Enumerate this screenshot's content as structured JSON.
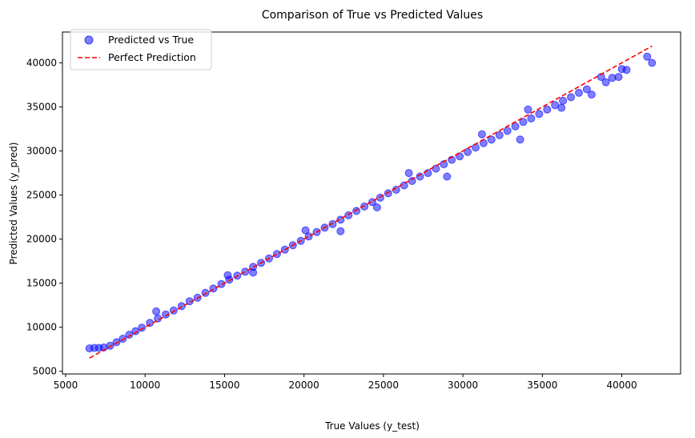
{
  "chart_data": {
    "type": "scatter",
    "title": "Comparison of True vs Predicted Values",
    "xlabel": "True Values (y_test)",
    "ylabel": "Predicted Values (y_pred)",
    "xlim": [
      4800,
      43700
    ],
    "ylim": [
      4700,
      43500
    ],
    "xticks": [
      5000,
      10000,
      15000,
      20000,
      25000,
      30000,
      35000,
      40000
    ],
    "yticks": [
      5000,
      10000,
      15000,
      20000,
      25000,
      30000,
      35000,
      40000
    ],
    "grid": false,
    "legend": {
      "placement": "top-left",
      "entries": [
        "Predicted vs True",
        "Perfect Prediction"
      ]
    },
    "colors": {
      "points": "#0000ff",
      "perfect_line": "#ff0000"
    },
    "series": [
      {
        "name": "Predicted vs True",
        "kind": "scatter",
        "points": [
          [
            6500,
            7600
          ],
          [
            6800,
            7650
          ],
          [
            7100,
            7650
          ],
          [
            7400,
            7700
          ],
          [
            7800,
            7900
          ],
          [
            8200,
            8300
          ],
          [
            8600,
            8700
          ],
          [
            9000,
            9150
          ],
          [
            9400,
            9550
          ],
          [
            9800,
            9950
          ],
          [
            10300,
            10500
          ],
          [
            10800,
            11000
          ],
          [
            11300,
            11450
          ],
          [
            11800,
            11900
          ],
          [
            12300,
            12400
          ],
          [
            12800,
            12950
          ],
          [
            13300,
            13350
          ],
          [
            13800,
            13900
          ],
          [
            14300,
            14400
          ],
          [
            14800,
            14900
          ],
          [
            15300,
            15400
          ],
          [
            15800,
            15850
          ],
          [
            16300,
            16300
          ],
          [
            16800,
            16850
          ],
          [
            17300,
            17300
          ],
          [
            17800,
            17800
          ],
          [
            18300,
            18300
          ],
          [
            18800,
            18800
          ],
          [
            19300,
            19300
          ],
          [
            19800,
            19800
          ],
          [
            20300,
            20300
          ],
          [
            20800,
            20800
          ],
          [
            21300,
            21300
          ],
          [
            21800,
            21700
          ],
          [
            22300,
            22200
          ],
          [
            22800,
            22700
          ],
          [
            23300,
            23200
          ],
          [
            23800,
            23700
          ],
          [
            24300,
            24200
          ],
          [
            24800,
            24700
          ],
          [
            25300,
            25200
          ],
          [
            25800,
            25600
          ],
          [
            26300,
            26100
          ],
          [
            26800,
            26600
          ],
          [
            27300,
            27100
          ],
          [
            27800,
            27500
          ],
          [
            28300,
            28000
          ],
          [
            28800,
            28500
          ],
          [
            29300,
            29000
          ],
          [
            29800,
            29400
          ],
          [
            30300,
            29900
          ],
          [
            30800,
            30400
          ],
          [
            31300,
            30900
          ],
          [
            31800,
            31300
          ],
          [
            32300,
            31800
          ],
          [
            32800,
            32300
          ],
          [
            33300,
            32800
          ],
          [
            33800,
            33300
          ],
          [
            34300,
            33700
          ],
          [
            34800,
            34200
          ],
          [
            35300,
            34700
          ],
          [
            35800,
            35200
          ],
          [
            36300,
            35700
          ],
          [
            36800,
            36100
          ],
          [
            37300,
            36600
          ],
          [
            37800,
            37000
          ],
          [
            38100,
            36400
          ],
          [
            38700,
            38400
          ],
          [
            39000,
            37800
          ],
          [
            39400,
            38300
          ],
          [
            39800,
            38400
          ],
          [
            40000,
            39300
          ],
          [
            40300,
            39200
          ],
          [
            41600,
            40700
          ],
          [
            41900,
            40000
          ],
          [
            29000,
            27100
          ],
          [
            33600,
            31300
          ],
          [
            36200,
            34900
          ],
          [
            16800,
            16200
          ],
          [
            22300,
            20900
          ],
          [
            24600,
            23600
          ],
          [
            10700,
            11800
          ],
          [
            15200,
            15900
          ],
          [
            20100,
            21000
          ],
          [
            26600,
            27500
          ],
          [
            31200,
            31900
          ],
          [
            34100,
            34700
          ]
        ]
      },
      {
        "name": "Perfect Prediction",
        "kind": "line",
        "x": [
          6500,
          41900
        ],
        "y": [
          6500,
          41900
        ]
      }
    ]
  }
}
